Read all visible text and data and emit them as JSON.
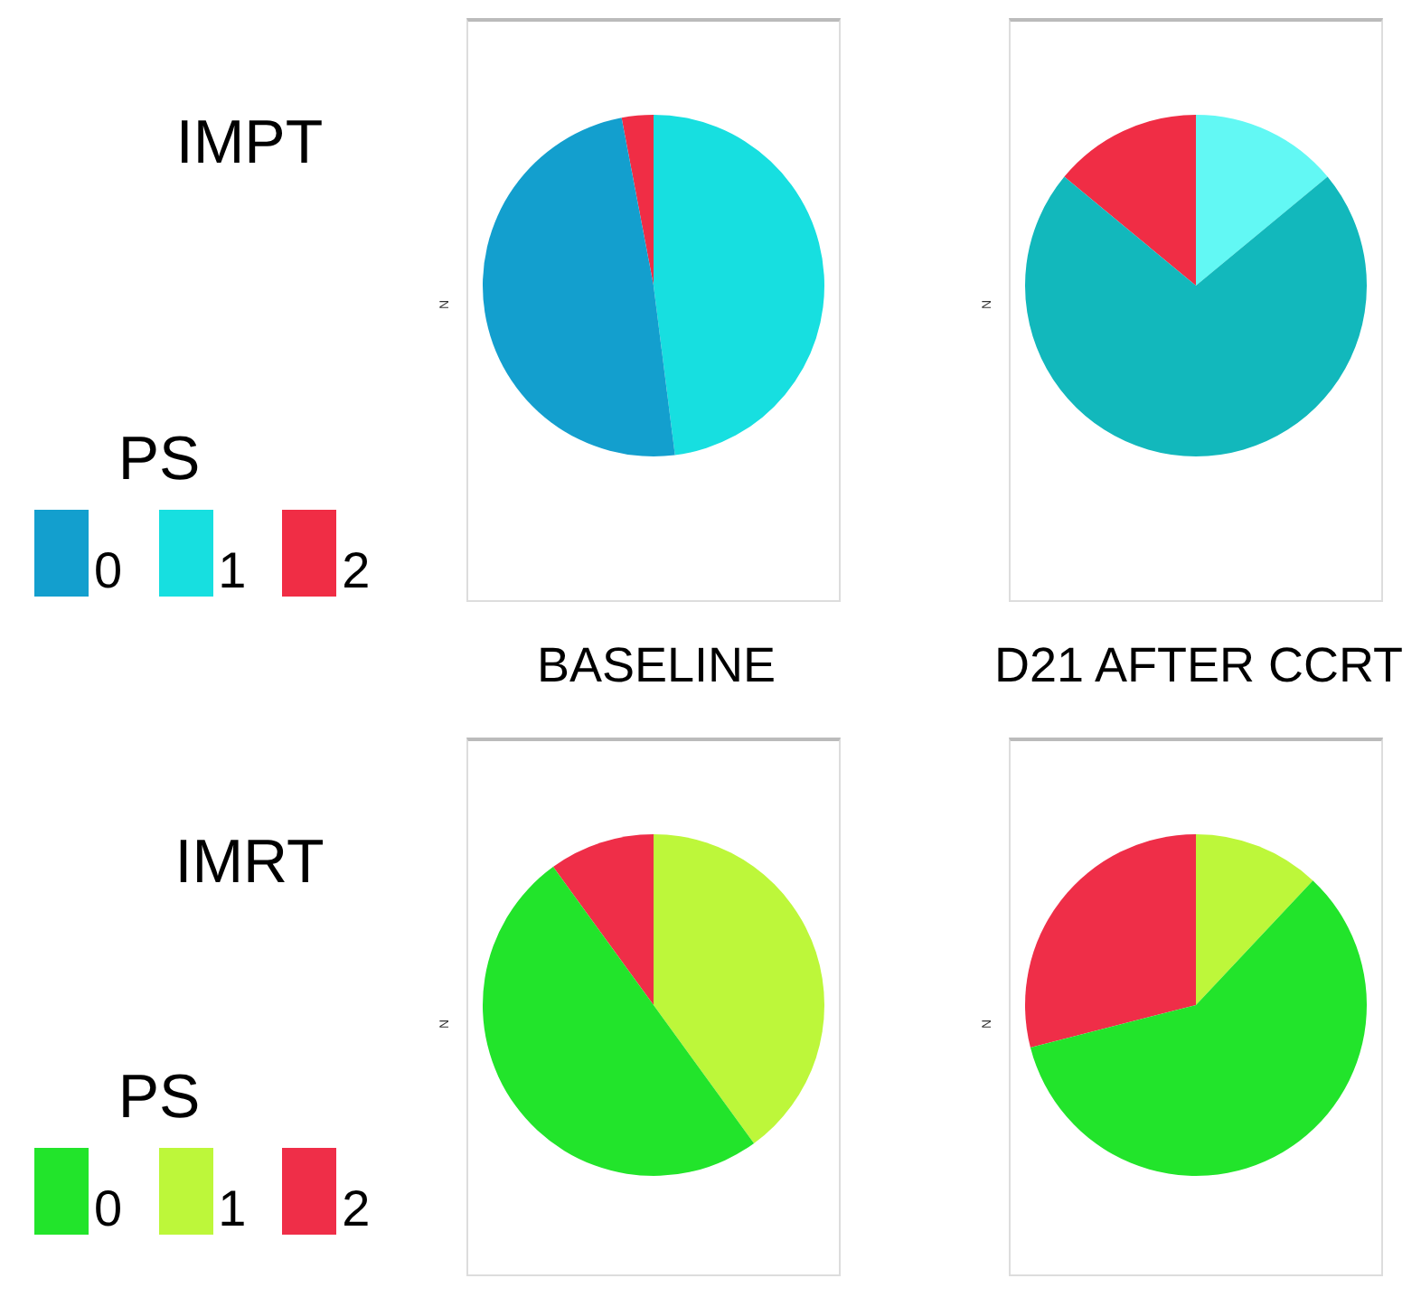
{
  "chart_data": [
    {
      "type": "pie",
      "categories": [
        "0",
        "1",
        "2"
      ],
      "values": [
        49,
        48,
        3
      ],
      "colors": [
        "#139fce",
        "#17dfe0",
        "#f02d45"
      ],
      "ylabel": "N",
      "xlabel": "BASELINE",
      "annotations": [
        "IMPT"
      ],
      "legend": "left",
      "legend_title": "PS"
    },
    {
      "type": "pie",
      "categories": [
        null,
        null,
        null
      ],
      "values": [
        72,
        14,
        14
      ],
      "colors": [
        "#12b8bc",
        "#62f8f4",
        "#f02d45"
      ],
      "ylabel": "N",
      "xlabel": "D21 AFTER CCRT"
    },
    {
      "type": "pie",
      "categories": [
        "0",
        "1",
        "2"
      ],
      "values": [
        50,
        40,
        10
      ],
      "colors": [
        "#22e42b",
        "#bdf73a",
        "#ef2e48"
      ],
      "ylabel": "N",
      "annotations": [
        "IMRT"
      ],
      "legend": "left",
      "legend_title": "PS"
    },
    {
      "type": "pie",
      "categories": [
        null,
        null,
        null
      ],
      "values": [
        59,
        12,
        29
      ],
      "colors": [
        "#22e42b",
        "#bdf73a",
        "#ef2e48"
      ],
      "ylabel": "N"
    }
  ]
}
